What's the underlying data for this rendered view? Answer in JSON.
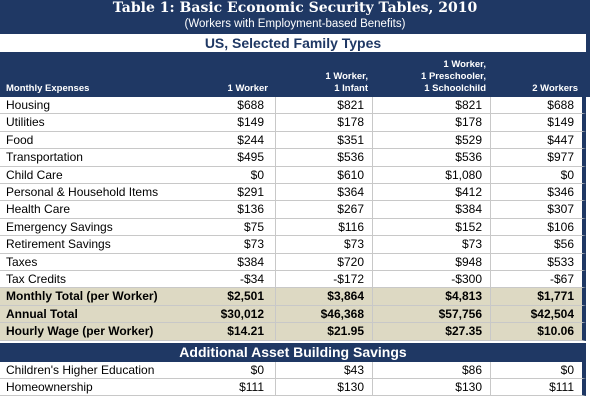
{
  "header": {
    "title": "Table 1: Basic Economic Security Tables, 2010",
    "subtitle": "(Workers with Employment-based Benefits)"
  },
  "table": {
    "section_title": "US, Selected Family Types",
    "columns": [
      [
        "Monthly Expenses"
      ],
      [
        "1 Worker"
      ],
      [
        "1 Worker,",
        "1 Infant"
      ],
      [
        "1 Worker,",
        "1 Preschooler,",
        "1 Schoolchild"
      ],
      [
        "2 Workers"
      ]
    ],
    "rows": [
      [
        "Housing",
        "$688",
        "$821",
        "$821",
        "$688"
      ],
      [
        "Utilities",
        "$149",
        "$178",
        "$178",
        "$149"
      ],
      [
        "Food",
        "$244",
        "$351",
        "$529",
        "$447"
      ],
      [
        "Transportation",
        "$495",
        "$536",
        "$536",
        "$977"
      ],
      [
        "Child Care",
        "$0",
        "$610",
        "$1,080",
        "$0"
      ],
      [
        "Personal & Household Items",
        "$291",
        "$364",
        "$412",
        "$346"
      ],
      [
        "Health Care",
        "$136",
        "$267",
        "$384",
        "$307"
      ],
      [
        "Emergency Savings",
        "$75",
        "$116",
        "$152",
        "$106"
      ],
      [
        "Retirement Savings",
        "$73",
        "$73",
        "$73",
        "$56"
      ],
      [
        "Taxes",
        "$384",
        "$720",
        "$948",
        "$533"
      ],
      [
        "Tax Credits",
        "-$34",
        "-$172",
        "-$300",
        "-$67"
      ]
    ],
    "total_rows": [
      [
        "Monthly Total (per Worker)",
        "$2,501",
        "$3,864",
        "$4,813",
        "$1,771"
      ],
      [
        "Annual Total",
        "$30,012",
        "$46,368",
        "$57,756",
        "$42,504"
      ],
      [
        "Hourly Wage (per Worker)",
        "$14.21",
        "$21.95",
        "$27.35",
        "$10.06"
      ]
    ]
  },
  "savings": {
    "title": "Additional Asset Building Savings",
    "rows": [
      [
        "Children's Higher Education",
        "$0",
        "$43",
        "$86",
        "$0"
      ],
      [
        "Homeownership",
        "$111",
        "$130",
        "$130",
        "$111"
      ]
    ]
  }
}
